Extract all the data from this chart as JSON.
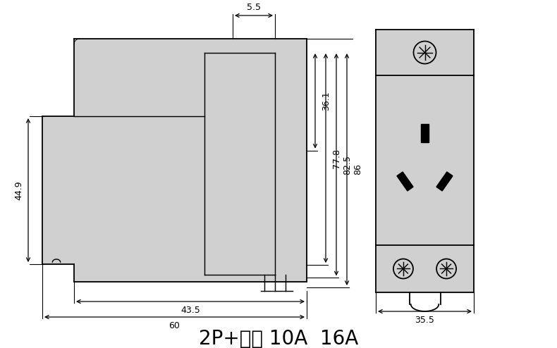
{
  "bg_color": "#ffffff",
  "line_color": "#000000",
  "fill_color": "#d0d0d0",
  "title": "2P+接地 10A  16A",
  "title_fontsize": 20,
  "dims": {
    "w55": "5.5",
    "h449": "44.9",
    "d361": "36.1",
    "d778": "77.8",
    "d825": "82.5",
    "d86": "86",
    "w435": "43.5",
    "w60": "60",
    "w355": "35.5"
  }
}
